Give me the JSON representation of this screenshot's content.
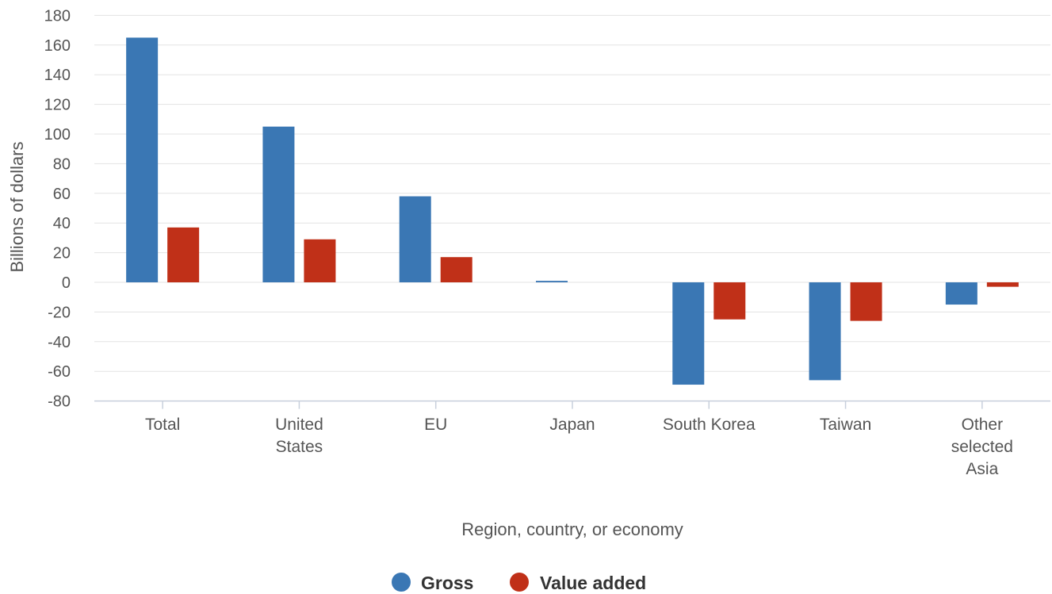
{
  "chart_data": {
    "type": "bar",
    "categories": [
      [
        "Total"
      ],
      [
        "United",
        "States"
      ],
      [
        "EU"
      ],
      [
        "Japan"
      ],
      [
        "South Korea"
      ],
      [
        "Taiwan"
      ],
      [
        "Other",
        "selected",
        "Asia"
      ]
    ],
    "series": [
      {
        "name": "Gross",
        "color": "#3a77b4",
        "values": [
          165,
          105,
          58,
          1,
          -69,
          -66,
          -15
        ]
      },
      {
        "name": "Value added",
        "color": "#c03018",
        "values": [
          37,
          29,
          17,
          0,
          -25,
          -26,
          -3
        ]
      }
    ],
    "xlabel": "Region, country, or economy",
    "ylabel": "Billions of dollars",
    "ylim": [
      -80,
      180
    ],
    "yticks": [
      180,
      160,
      140,
      120,
      100,
      80,
      60,
      40,
      20,
      0,
      -20,
      -40,
      -60,
      -80
    ],
    "grid": true,
    "legend_position": "bottom-center"
  }
}
